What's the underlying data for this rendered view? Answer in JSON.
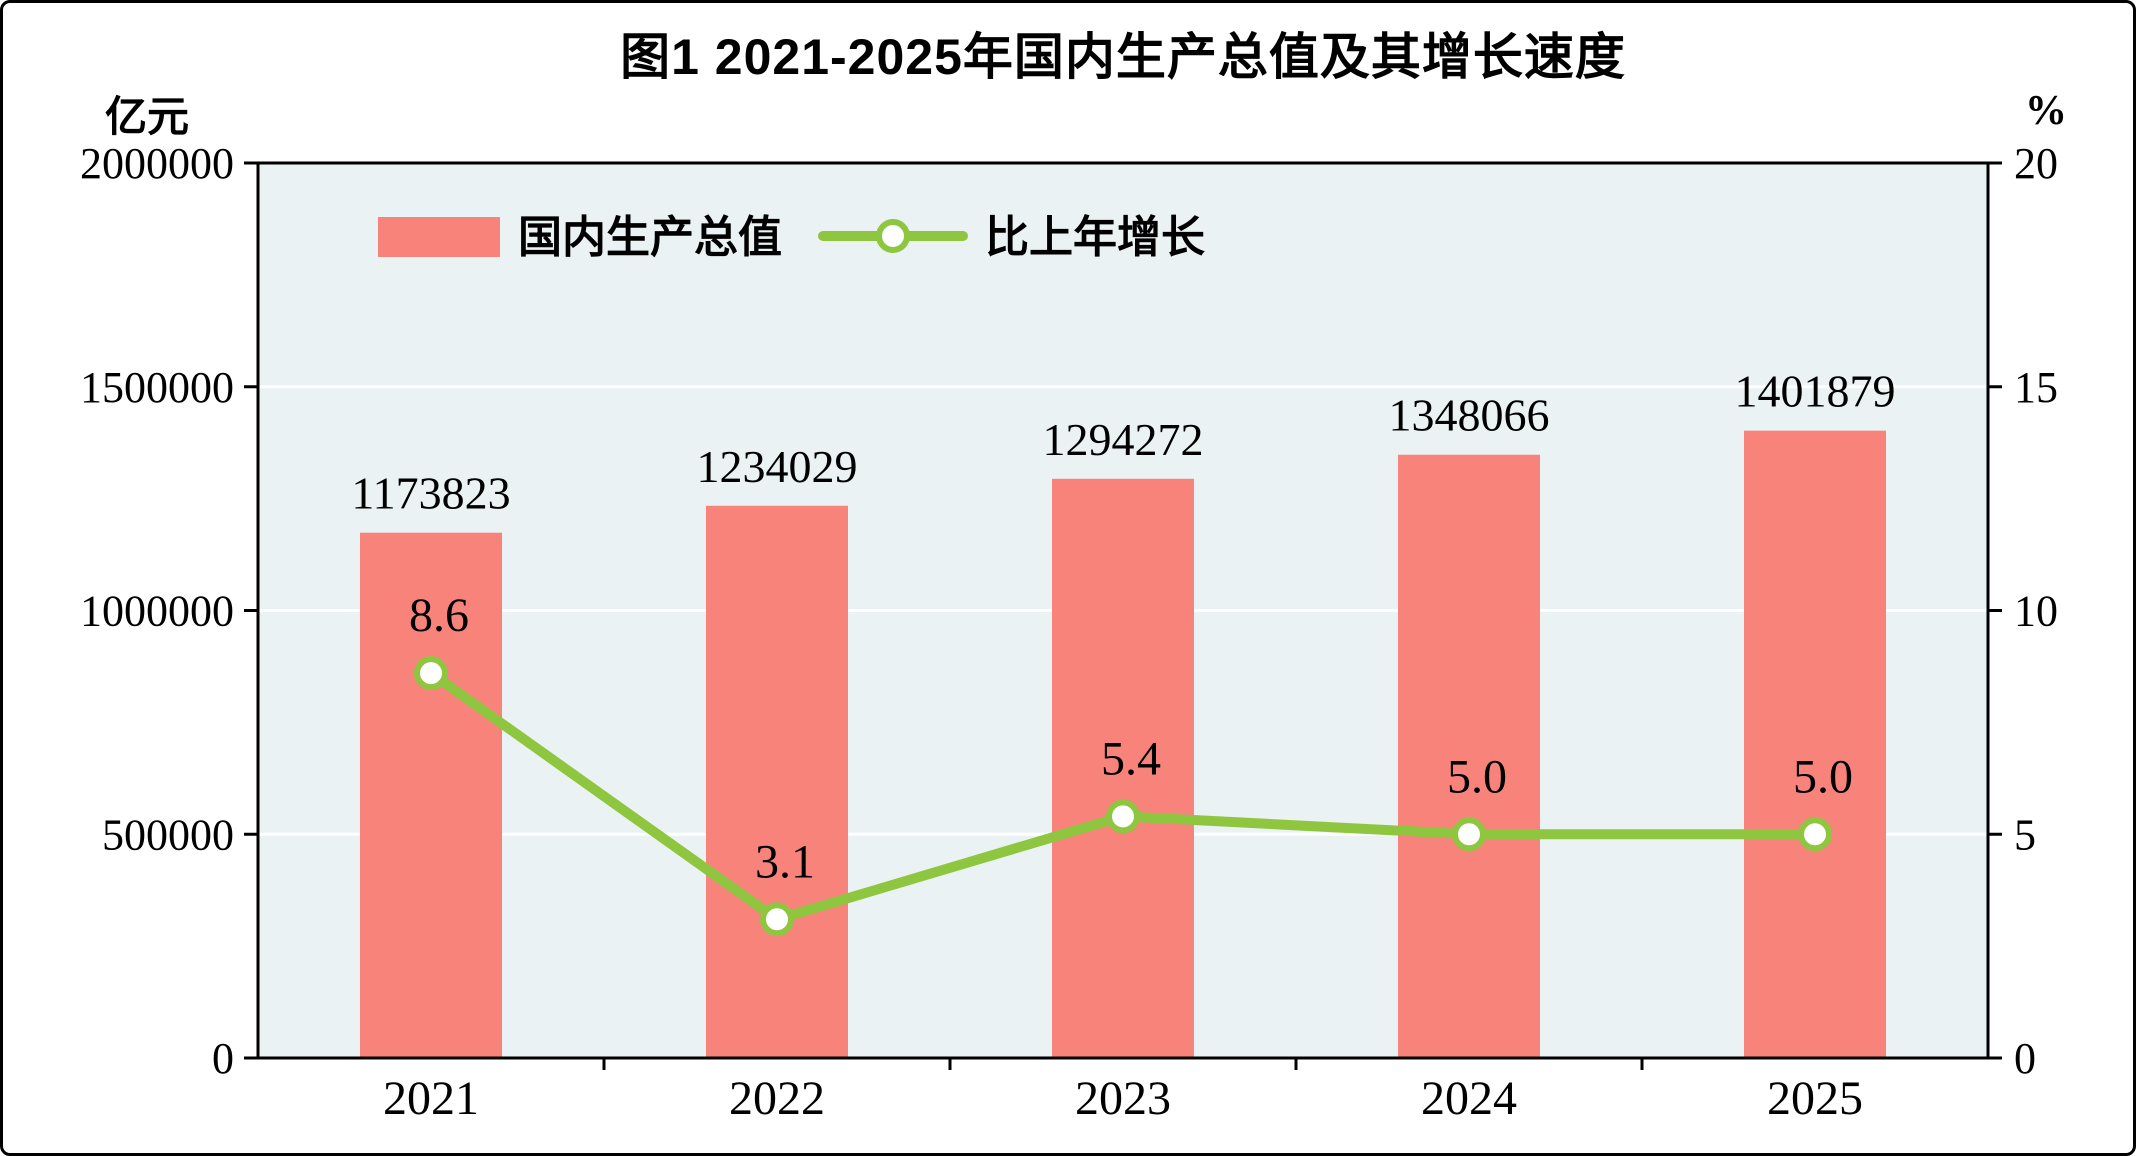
{
  "chart_data": {
    "type": "bar+line",
    "title": "图1  2021-2025年国内生产总值及其增长速度",
    "unit_left": "亿元",
    "unit_right": "%",
    "categories": [
      "2021",
      "2022",
      "2023",
      "2024",
      "2025"
    ],
    "series": [
      {
        "name": "国内生产总值",
        "type": "bar",
        "axis": "left",
        "color": "#F8837B",
        "values": [
          1173823,
          1234029,
          1294272,
          1348066,
          1401879
        ]
      },
      {
        "name": "比上年增长",
        "type": "line",
        "axis": "right",
        "color": "#8EC63F",
        "values": [
          8.6,
          3.1,
          5.4,
          5.0,
          5.0
        ]
      }
    ],
    "left_axis": {
      "min": 0,
      "max": 2000000,
      "ticks": [
        0,
        500000,
        1000000,
        1500000,
        2000000
      ]
    },
    "right_axis": {
      "min": 0,
      "max": 20,
      "ticks": [
        0,
        5,
        10,
        15,
        20
      ]
    },
    "plot_background": "#EAF2F4",
    "gridline_color": "#FFFFFF",
    "axis_color": "#000000",
    "legend": {
      "items": [
        "国内生产总值",
        "比上年增长"
      ]
    }
  }
}
